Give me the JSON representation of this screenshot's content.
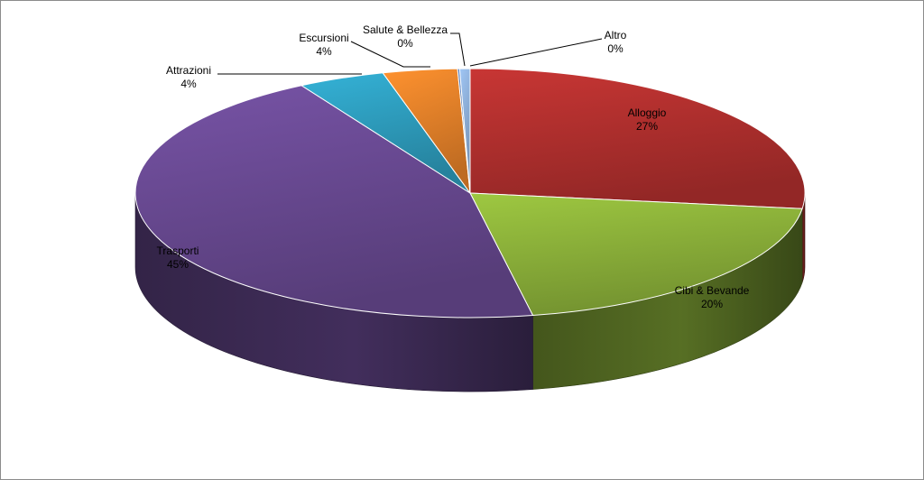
{
  "chart_data": {
    "type": "pie",
    "title": "",
    "slices": [
      {
        "label": "Alloggio",
        "percent_label": "27%",
        "value": 27.0,
        "color": "#B3302E"
      },
      {
        "label": "Cibi & Bevande",
        "percent_label": "20%",
        "value": 20.0,
        "color": "#8DB33A"
      },
      {
        "label": "Trasporti",
        "percent_label": "45%",
        "value": 44.6,
        "color": "#6A4A94"
      },
      {
        "label": "Attrazioni",
        "percent_label": "4%",
        "value": 4.2,
        "color": "#2E9FC0"
      },
      {
        "label": "Escursioni",
        "percent_label": "4%",
        "value": 3.6,
        "color": "#E8822A"
      },
      {
        "label": "Salute & Bellezza",
        "percent_label": "0%",
        "value": 0.1,
        "color": "#4B6FA8"
      },
      {
        "label": "Altro",
        "percent_label": "0%",
        "value": 0.5,
        "color": "#8FB1DB"
      }
    ],
    "three_d": true,
    "legend": "none",
    "data_labels": "category name and percentage"
  }
}
